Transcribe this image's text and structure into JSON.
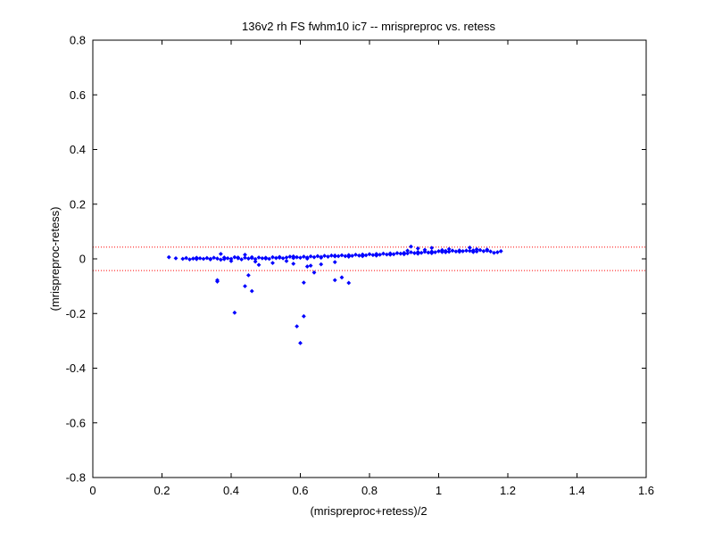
{
  "chart_data": {
    "type": "scatter",
    "title": "136v2 rh FS fwhm10 ic7 -- mrispreproc vs. retess",
    "xlabel": "(mrispreproc+retess)/2",
    "ylabel": "(mrispreproc-retess)",
    "xlim": [
      0,
      1.6
    ],
    "ylim": [
      -0.8,
      0.8
    ],
    "xticks": [
      "0",
      "0.2",
      "0.4",
      "0.6",
      "0.8",
      "1",
      "1.2",
      "1.4",
      "1.6"
    ],
    "yticks": [
      "0.8",
      "0.6",
      "0.4",
      "0.2",
      "0",
      "-0.2",
      "-0.4",
      "-0.6",
      "-0.8"
    ],
    "grid": false,
    "reference_lines": [
      0.043,
      -0.043
    ],
    "colors": {
      "points": "#0000ff",
      "reference": "#ff0000",
      "axes": "#000000"
    },
    "series": [
      {
        "points": [
          [
            0.22,
            0.006
          ],
          [
            0.24,
            0.002
          ],
          [
            0.26,
            0.0
          ],
          [
            0.27,
            0.003
          ],
          [
            0.28,
            -0.002
          ],
          [
            0.29,
            0.001
          ],
          [
            0.3,
            -0.001
          ],
          [
            0.31,
            0.002
          ],
          [
            0.32,
            0.0
          ],
          [
            0.33,
            0.003
          ],
          [
            0.34,
            -0.002
          ],
          [
            0.35,
            0.004
          ],
          [
            0.36,
            0.001
          ],
          [
            0.37,
            -0.003
          ],
          [
            0.38,
            0.005
          ],
          [
            0.39,
            0.002
          ],
          [
            0.4,
            0.0
          ],
          [
            0.41,
            0.006
          ],
          [
            0.42,
            0.002
          ],
          [
            0.43,
            -0.002
          ],
          [
            0.44,
            0.004
          ],
          [
            0.45,
            0.001
          ],
          [
            0.46,
            0.003
          ],
          [
            0.47,
            -0.001
          ],
          [
            0.48,
            0.005
          ],
          [
            0.49,
            0.002
          ],
          [
            0.5,
            0.004
          ],
          [
            0.51,
            0.0
          ],
          [
            0.52,
            0.006
          ],
          [
            0.53,
            0.003
          ],
          [
            0.54,
            0.007
          ],
          [
            0.55,
            0.002
          ],
          [
            0.56,
            0.005
          ],
          [
            0.57,
            0.008
          ],
          [
            0.58,
            0.003
          ],
          [
            0.59,
            0.006
          ],
          [
            0.6,
            0.004
          ],
          [
            0.61,
            0.008
          ],
          [
            0.62,
            0.005
          ],
          [
            0.63,
            0.009
          ],
          [
            0.64,
            0.006
          ],
          [
            0.65,
            0.01
          ],
          [
            0.66,
            0.007
          ],
          [
            0.67,
            0.011
          ],
          [
            0.68,
            0.008
          ],
          [
            0.69,
            0.012
          ],
          [
            0.7,
            0.009
          ],
          [
            0.71,
            0.01
          ],
          [
            0.72,
            0.013
          ],
          [
            0.73,
            0.01
          ],
          [
            0.74,
            0.014
          ],
          [
            0.75,
            0.011
          ],
          [
            0.76,
            0.015
          ],
          [
            0.77,
            0.012
          ],
          [
            0.78,
            0.016
          ],
          [
            0.79,
            0.013
          ],
          [
            0.8,
            0.017
          ],
          [
            0.81,
            0.014
          ],
          [
            0.82,
            0.018
          ],
          [
            0.83,
            0.015
          ],
          [
            0.84,
            0.019
          ],
          [
            0.85,
            0.016
          ],
          [
            0.86,
            0.02
          ],
          [
            0.87,
            0.017
          ],
          [
            0.88,
            0.021
          ],
          [
            0.89,
            0.019
          ],
          [
            0.9,
            0.022
          ],
          [
            0.91,
            0.02
          ],
          [
            0.92,
            0.024
          ],
          [
            0.93,
            0.021
          ],
          [
            0.94,
            0.025
          ],
          [
            0.95,
            0.022
          ],
          [
            0.96,
            0.026
          ],
          [
            0.97,
            0.023
          ],
          [
            0.98,
            0.027
          ],
          [
            0.99,
            0.024
          ],
          [
            1.0,
            0.028
          ],
          [
            1.01,
            0.025
          ],
          [
            1.02,
            0.029
          ],
          [
            1.03,
            0.026
          ],
          [
            1.04,
            0.03
          ],
          [
            1.05,
            0.027
          ],
          [
            1.06,
            0.031
          ],
          [
            1.07,
            0.028
          ],
          [
            1.08,
            0.03
          ],
          [
            1.09,
            0.029
          ],
          [
            1.1,
            0.031
          ],
          [
            1.11,
            0.027
          ],
          [
            1.12,
            0.032
          ],
          [
            1.13,
            0.028
          ],
          [
            1.14,
            0.03
          ],
          [
            1.15,
            0.027
          ],
          [
            1.17,
            0.024
          ],
          [
            1.18,
            0.028
          ],
          [
            0.3,
            0.004
          ],
          [
            0.34,
            0.0
          ],
          [
            0.38,
            -0.001
          ],
          [
            0.42,
            0.005
          ],
          [
            0.46,
            0.006
          ],
          [
            0.5,
            0.001
          ],
          [
            0.54,
            0.004
          ],
          [
            0.58,
            0.009
          ],
          [
            0.62,
            0.001
          ],
          [
            0.66,
            0.004
          ],
          [
            0.7,
            0.012
          ],
          [
            0.74,
            0.008
          ],
          [
            0.78,
            0.01
          ],
          [
            0.82,
            0.012
          ],
          [
            0.86,
            0.015
          ],
          [
            0.9,
            0.017
          ],
          [
            0.94,
            0.019
          ],
          [
            0.98,
            0.021
          ],
          [
            1.02,
            0.024
          ],
          [
            1.06,
            0.026
          ],
          [
            1.1,
            0.025
          ],
          [
            1.14,
            0.034
          ],
          [
            1.16,
            0.022
          ],
          [
            0.92,
            0.045
          ],
          [
            0.94,
            0.038
          ],
          [
            0.98,
            0.04
          ],
          [
            1.01,
            0.032
          ],
          [
            1.03,
            0.036
          ],
          [
            1.09,
            0.041
          ],
          [
            1.11,
            0.035
          ],
          [
            0.91,
            0.03
          ],
          [
            0.96,
            0.033
          ],
          [
            0.37,
            0.018
          ],
          [
            0.44,
            0.015
          ],
          [
            0.48,
            -0.022
          ],
          [
            0.52,
            -0.015
          ],
          [
            0.56,
            -0.008
          ],
          [
            0.58,
            -0.018
          ],
          [
            0.62,
            -0.028
          ],
          [
            0.66,
            -0.02
          ],
          [
            0.7,
            -0.012
          ],
          [
            0.47,
            -0.01
          ],
          [
            0.4,
            -0.008
          ],
          [
            0.36,
            -0.083
          ],
          [
            0.36,
            -0.078
          ],
          [
            0.41,
            -0.197
          ],
          [
            0.44,
            -0.1
          ],
          [
            0.45,
            -0.06
          ],
          [
            0.46,
            -0.118
          ],
          [
            0.59,
            -0.247
          ],
          [
            0.6,
            -0.308
          ],
          [
            0.61,
            -0.21
          ],
          [
            0.61,
            -0.087
          ],
          [
            0.63,
            -0.025
          ],
          [
            0.64,
            -0.05
          ],
          [
            0.7,
            -0.078
          ],
          [
            0.72,
            -0.068
          ],
          [
            0.74,
            -0.088
          ]
        ]
      }
    ]
  }
}
